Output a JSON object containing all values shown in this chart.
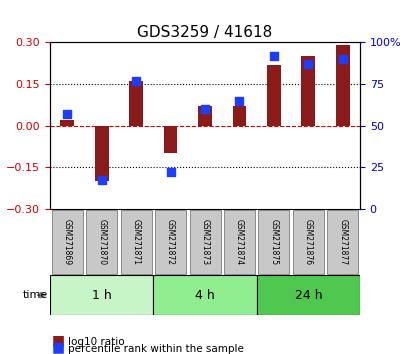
{
  "title": "GDS3259 / 41618",
  "samples": [
    "GSM271869",
    "GSM271870",
    "GSM271871",
    "GSM271872",
    "GSM271873",
    "GSM271874",
    "GSM271875",
    "GSM271876",
    "GSM271877"
  ],
  "log10_ratio": [
    0.02,
    -0.2,
    0.16,
    -0.1,
    0.07,
    0.07,
    0.22,
    0.25,
    0.29
  ],
  "percentile_rank": [
    57,
    17,
    77,
    22,
    60,
    65,
    92,
    87,
    90
  ],
  "ylim_left": [
    -0.3,
    0.3
  ],
  "ylim_right": [
    0,
    100
  ],
  "yticks_left": [
    -0.3,
    -0.15,
    0,
    0.15,
    0.3
  ],
  "yticks_right": [
    0,
    25,
    50,
    75,
    100
  ],
  "hlines": [
    -0.15,
    0,
    0.15
  ],
  "bar_color": "#8B1A1A",
  "dot_color": "#1E3EFF",
  "time_groups": [
    {
      "label": "1 h",
      "start": 0,
      "end": 3,
      "color": "#C8F5C8"
    },
    {
      "label": "4 h",
      "start": 3,
      "end": 6,
      "color": "#90EE90"
    },
    {
      "label": "24 h",
      "start": 6,
      "end": 9,
      "color": "#50C850"
    }
  ],
  "bar_width": 0.4,
  "dot_size": 40,
  "left_ylabel_color": "#CC0000",
  "right_ylabel_color": "#0000CC",
  "zero_line_color": "#CC0000",
  "grid_color": "#000000",
  "label_area_color": "#C8C8C8",
  "label_area_border": "#666666"
}
